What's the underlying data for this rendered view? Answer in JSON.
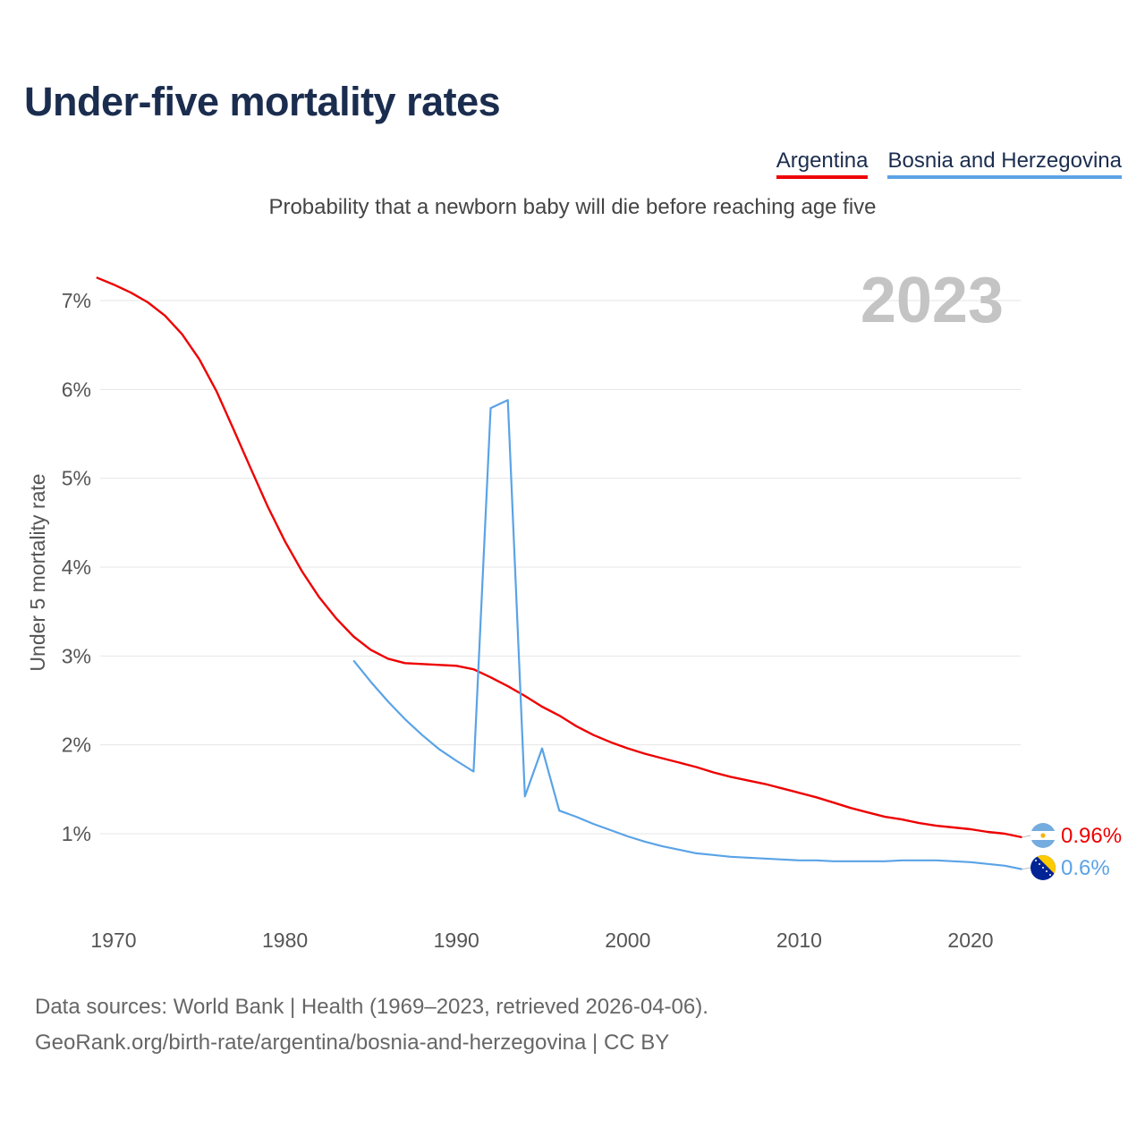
{
  "header": {
    "title": "Under-five mortality rates",
    "subtitle": "Probability that a newborn baby will die before reaching age five"
  },
  "legend": [
    {
      "label": "Argentina",
      "color": "#ee0000"
    },
    {
      "label": "Bosnia and Herzegovina",
      "color": "#5aa3e6"
    }
  ],
  "footer": {
    "line1": "Data sources: World Bank | Health (1969–2023, retrieved 2026-04-06).",
    "line2": "GeoRank.org/birth-rate/argentina/bosnia-and-herzegovina | CC BY"
  },
  "chart_data": {
    "type": "line",
    "title": "Under-five mortality rates",
    "ylabel": "Under 5 mortality rate",
    "xlabel": "",
    "year_watermark": "2023",
    "xlim": [
      1969,
      2023
    ],
    "ylim": [
      0,
      7.5
    ],
    "yticks": [
      1,
      2,
      3,
      4,
      5,
      6,
      7
    ],
    "ytick_labels": [
      "1%",
      "2%",
      "3%",
      "4%",
      "5%",
      "6%",
      "7%"
    ],
    "xticks": [
      1970,
      1980,
      1990,
      2000,
      2010,
      2020
    ],
    "xtick_labels": [
      "1970",
      "1980",
      "1990",
      "2000",
      "2010",
      "2020"
    ],
    "grid": true,
    "series": [
      {
        "name": "Argentina",
        "color": "#ee0000",
        "end_label": "0.96%",
        "flag": "argentina-flag",
        "x": [
          1969,
          1970,
          1971,
          1972,
          1973,
          1974,
          1975,
          1976,
          1977,
          1978,
          1979,
          1980,
          1981,
          1982,
          1983,
          1984,
          1985,
          1986,
          1987,
          1988,
          1989,
          1990,
          1991,
          1992,
          1993,
          1994,
          1995,
          1996,
          1997,
          1998,
          1999,
          2000,
          2001,
          2002,
          2003,
          2004,
          2005,
          2006,
          2007,
          2008,
          2009,
          2010,
          2011,
          2012,
          2013,
          2014,
          2015,
          2016,
          2017,
          2018,
          2019,
          2020,
          2021,
          2022,
          2023
        ],
        "y": [
          7.26,
          7.18,
          7.09,
          6.98,
          6.83,
          6.62,
          6.34,
          5.98,
          5.55,
          5.11,
          4.68,
          4.29,
          3.95,
          3.66,
          3.42,
          3.22,
          3.07,
          2.97,
          2.92,
          2.91,
          2.9,
          2.89,
          2.85,
          2.76,
          2.66,
          2.55,
          2.43,
          2.33,
          2.21,
          2.11,
          2.03,
          1.96,
          1.9,
          1.85,
          1.8,
          1.75,
          1.69,
          1.64,
          1.6,
          1.56,
          1.51,
          1.46,
          1.41,
          1.35,
          1.29,
          1.24,
          1.19,
          1.16,
          1.12,
          1.09,
          1.07,
          1.05,
          1.02,
          1.0,
          0.96
        ]
      },
      {
        "name": "Bosnia and Herzegovina",
        "color": "#5aa3e6",
        "end_label": "0.6%",
        "flag": "bosnia-flag",
        "x": [
          1984,
          1985,
          1986,
          1987,
          1988,
          1989,
          1990,
          1991,
          1992,
          1993,
          1994,
          1995,
          1996,
          1997,
          1998,
          1999,
          2000,
          2001,
          2002,
          2003,
          2004,
          2005,
          2006,
          2007,
          2008,
          2009,
          2010,
          2011,
          2012,
          2013,
          2014,
          2015,
          2016,
          2017,
          2018,
          2019,
          2020,
          2021,
          2022,
          2023
        ],
        "y": [
          2.95,
          2.71,
          2.49,
          2.29,
          2.11,
          1.95,
          1.82,
          1.7,
          5.79,
          5.88,
          1.42,
          1.96,
          1.26,
          1.19,
          1.11,
          1.04,
          0.97,
          0.91,
          0.86,
          0.82,
          0.78,
          0.76,
          0.74,
          0.73,
          0.72,
          0.71,
          0.7,
          0.7,
          0.69,
          0.69,
          0.69,
          0.69,
          0.7,
          0.7,
          0.7,
          0.69,
          0.68,
          0.66,
          0.64,
          0.6
        ]
      }
    ]
  }
}
